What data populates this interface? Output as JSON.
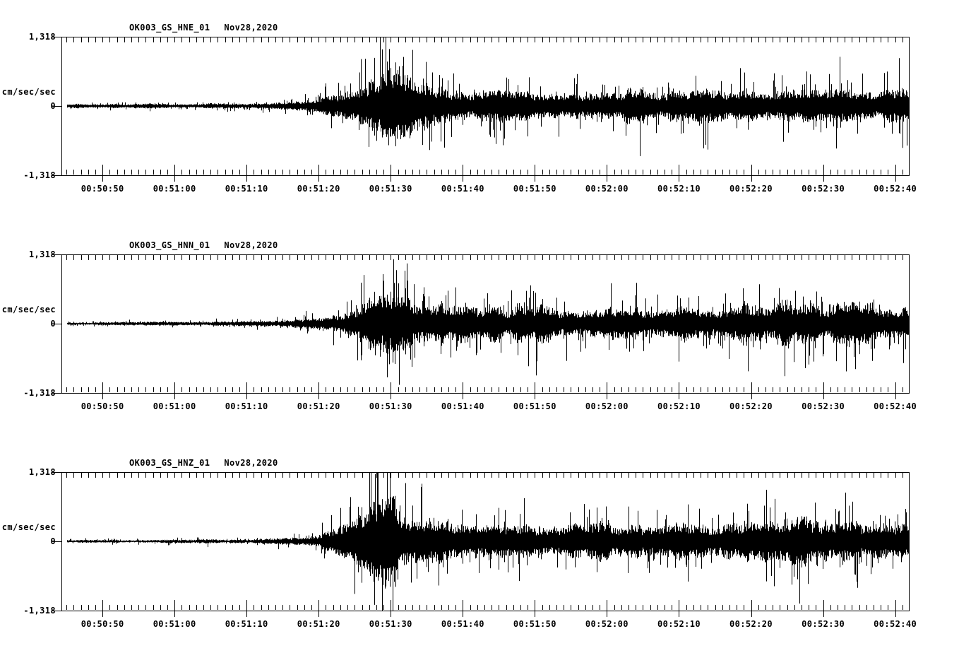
{
  "figure": {
    "background": "#ffffff",
    "ink_color": "#000000",
    "description": "Three-channel seismogram (helicorder-style) strong-motion record"
  },
  "chart_data": [
    {
      "type": "line",
      "id_label": "OK003_GS_HNE_01",
      "date_label": "Nov28,2020",
      "ylabel": "cm/sec/sec",
      "ytick_labels": [
        "1,318",
        "0",
        "-1,318"
      ],
      "yticks": [
        1.318,
        0,
        -1.318
      ],
      "ylim": [
        -1.318,
        1.318
      ],
      "xticklabels": [
        "00:50:50",
        "00:51:00",
        "00:51:10",
        "00:51:20",
        "00:51:30",
        "00:51:40",
        "00:51:50",
        "00:52:00",
        "00:52:10",
        "00:52:20",
        "00:52:30",
        "00:52:40"
      ],
      "x_axis": {
        "window_sec": 117.6,
        "first_label_offset_sec": 5.7,
        "major_interval_sec": 10,
        "minor_interval_sec": 1,
        "grid": false
      },
      "envelope_t_amp": [
        [
          0,
          0.045
        ],
        [
          16,
          0.048
        ],
        [
          24,
          0.058
        ],
        [
          30,
          0.09
        ],
        [
          34,
          0.13
        ],
        [
          37,
          0.2
        ],
        [
          39,
          0.32
        ],
        [
          41,
          0.5
        ],
        [
          43,
          0.68
        ],
        [
          44.5,
          0.88
        ],
        [
          45.8,
          0.97
        ],
        [
          47,
          0.82
        ],
        [
          48.5,
          0.66
        ],
        [
          50.5,
          0.52
        ],
        [
          53,
          0.42
        ],
        [
          56,
          0.34
        ],
        [
          60,
          0.29
        ],
        [
          65,
          0.28
        ],
        [
          70,
          0.31
        ],
        [
          74,
          0.29
        ],
        [
          78,
          0.32
        ],
        [
          83,
          0.3
        ],
        [
          88,
          0.31
        ],
        [
          93,
          0.29
        ],
        [
          98,
          0.32
        ],
        [
          103,
          0.3
        ],
        [
          108,
          0.32
        ],
        [
          112,
          0.31
        ],
        [
          115,
          0.33
        ],
        [
          117.6,
          0.35
        ]
      ],
      "peak_time_label": "00:51:29",
      "peak_amplitude": 1.3
    },
    {
      "type": "line",
      "id_label": "OK003_GS_HNN_01",
      "date_label": "Nov28,2020",
      "ylabel": "cm/sec/sec",
      "ytick_labels": [
        "1,318",
        "0",
        "-1,318"
      ],
      "yticks": [
        1.318,
        0,
        -1.318
      ],
      "ylim": [
        -1.318,
        1.318
      ],
      "xticklabels": [
        "00:50:50",
        "00:51:00",
        "00:51:10",
        "00:51:20",
        "00:51:30",
        "00:51:40",
        "00:51:50",
        "00:52:00",
        "00:52:10",
        "00:52:20",
        "00:52:30",
        "00:52:40"
      ],
      "x_axis": {
        "window_sec": 117.6,
        "first_label_offset_sec": 5.7,
        "major_interval_sec": 10,
        "minor_interval_sec": 1,
        "grid": false
      },
      "envelope_t_amp": [
        [
          0,
          0.032
        ],
        [
          16,
          0.034
        ],
        [
          24,
          0.042
        ],
        [
          30,
          0.06
        ],
        [
          34,
          0.1
        ],
        [
          37,
          0.16
        ],
        [
          39,
          0.26
        ],
        [
          41,
          0.42
        ],
        [
          43,
          0.6
        ],
        [
          44.5,
          0.78
        ],
        [
          46,
          0.9
        ],
        [
          47.5,
          0.74
        ],
        [
          49,
          0.6
        ],
        [
          51,
          0.5
        ],
        [
          54,
          0.42
        ],
        [
          58,
          0.37
        ],
        [
          62,
          0.34
        ],
        [
          66,
          0.37
        ],
        [
          70,
          0.33
        ],
        [
          74,
          0.36
        ],
        [
          78,
          0.33
        ],
        [
          82,
          0.36
        ],
        [
          86,
          0.33
        ],
        [
          90,
          0.35
        ],
        [
          93.5,
          0.44
        ],
        [
          95,
          0.5
        ],
        [
          96.5,
          0.38
        ],
        [
          99,
          0.42
        ],
        [
          101.5,
          0.5
        ],
        [
          103.5,
          0.46
        ],
        [
          105.5,
          0.38
        ],
        [
          108,
          0.42
        ],
        [
          110.5,
          0.4
        ],
        [
          113,
          0.36
        ],
        [
          115.5,
          0.4
        ],
        [
          117.6,
          0.42
        ]
      ],
      "peak_time_label": "00:51:29",
      "peak_amplitude": 1.3
    },
    {
      "type": "line",
      "id_label": "OK003_GS_HNZ_01",
      "date_label": "Nov28,2020",
      "ylabel": "cm/sec/sec",
      "ytick_labels": [
        "1,318",
        "0",
        "-1,318"
      ],
      "yticks": [
        1.318,
        0,
        -1.318
      ],
      "ylim": [
        -1.318,
        1.318
      ],
      "xticklabels": [
        "00:50:50",
        "00:51:00",
        "00:51:10",
        "00:51:20",
        "00:51:30",
        "00:51:40",
        "00:51:50",
        "00:52:00",
        "00:52:10",
        "00:52:20",
        "00:52:30",
        "00:52:40"
      ],
      "x_axis": {
        "window_sec": 117.6,
        "first_label_offset_sec": 5.7,
        "major_interval_sec": 10,
        "minor_interval_sec": 1,
        "grid": false
      },
      "envelope_t_amp": [
        [
          0,
          0.03
        ],
        [
          16,
          0.032
        ],
        [
          24,
          0.04
        ],
        [
          30,
          0.06
        ],
        [
          33,
          0.09
        ],
        [
          36,
          0.14
        ],
        [
          38,
          0.22
        ],
        [
          40,
          0.38
        ],
        [
          42,
          0.58
        ],
        [
          44,
          0.8
        ],
        [
          45.5,
          0.94
        ],
        [
          47,
          0.8
        ],
        [
          48.5,
          0.66
        ],
        [
          51,
          0.54
        ],
        [
          54,
          0.46
        ],
        [
          58,
          0.4
        ],
        [
          62,
          0.37
        ],
        [
          66,
          0.35
        ],
        [
          70,
          0.37
        ],
        [
          74,
          0.35
        ],
        [
          78,
          0.37
        ],
        [
          82,
          0.35
        ],
        [
          86,
          0.37
        ],
        [
          90,
          0.35
        ],
        [
          94,
          0.37
        ],
        [
          97,
          0.36
        ],
        [
          100,
          0.42
        ],
        [
          103,
          0.45
        ],
        [
          105,
          0.42
        ],
        [
          108,
          0.39
        ],
        [
          111,
          0.41
        ],
        [
          114,
          0.37
        ],
        [
          117.6,
          0.39
        ]
      ],
      "peak_time_label": "00:51:28",
      "peak_amplitude": 1.3
    }
  ]
}
